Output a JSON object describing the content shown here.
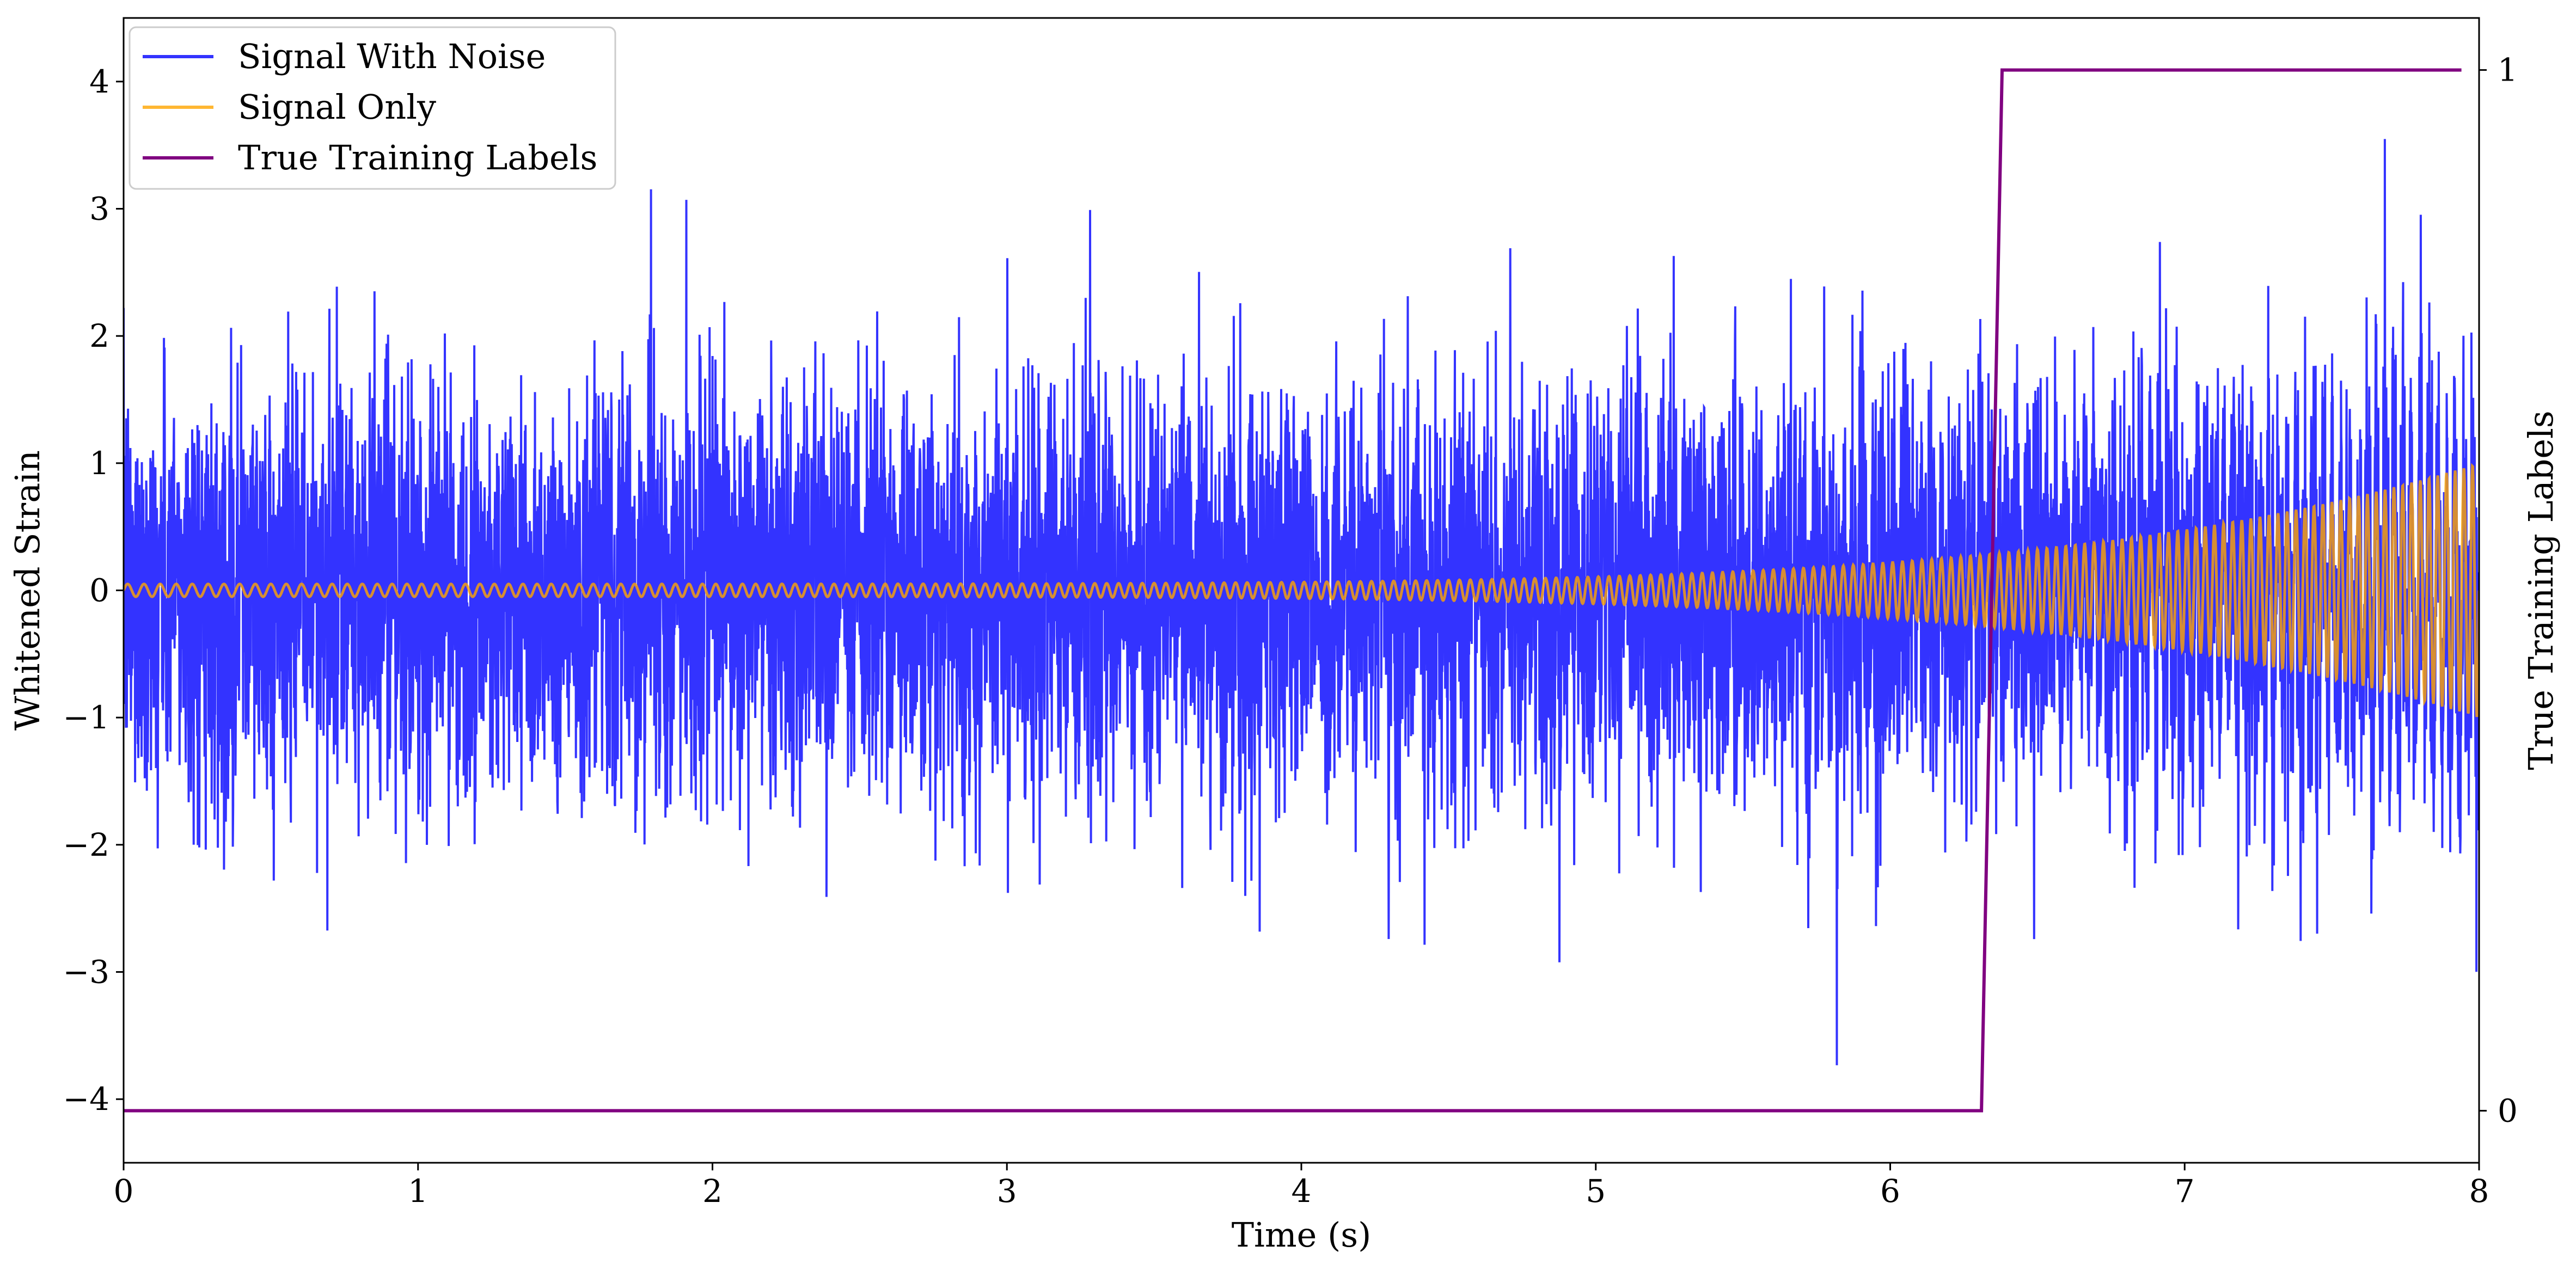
{
  "chart_data": {
    "type": "line",
    "title": "",
    "xlabel": "Time (s)",
    "ylabel": "Whitened Strain",
    "y2label": "True Training Labels",
    "xlim": [
      0,
      8
    ],
    "ylim": [
      -4.5,
      4.5
    ],
    "y2lim": [
      -0.05,
      1.05
    ],
    "xticks": [
      0,
      1,
      2,
      3,
      4,
      5,
      6,
      7,
      8
    ],
    "xtick_labels": [
      "0",
      "1",
      "2",
      "3",
      "4",
      "5",
      "6",
      "7",
      "8"
    ],
    "yticks": [
      -4,
      -3,
      -2,
      -1,
      0,
      1,
      2,
      3,
      4
    ],
    "ytick_labels": [
      "−4",
      "−3",
      "−2",
      "−1",
      "0",
      "1",
      "2",
      "3",
      "4"
    ],
    "y2ticks": [
      0,
      1
    ],
    "y2tick_labels": [
      "0",
      "1"
    ],
    "grid": false,
    "legend_position": "top-left",
    "series": [
      {
        "name": "Signal With Noise",
        "color": "#0000ff",
        "axis": "left",
        "description_stats": {
          "n_points": 8000,
          "std": 0.8,
          "min": -4.0,
          "max": 3.9
        }
      },
      {
        "name": "Signal Only",
        "color": "#ffa500",
        "axis": "left",
        "chirp": {
          "start_freq_hz": 18,
          "end_freq_hz": 34,
          "start_amplitude": 0.05,
          "end_amplitude": 1.0
        }
      },
      {
        "name": "True Training Labels",
        "color": "#800080",
        "axis": "right",
        "x": [
          0,
          6.31,
          6.38,
          7.94
        ],
        "y": [
          0,
          0,
          1,
          1
        ]
      }
    ]
  }
}
